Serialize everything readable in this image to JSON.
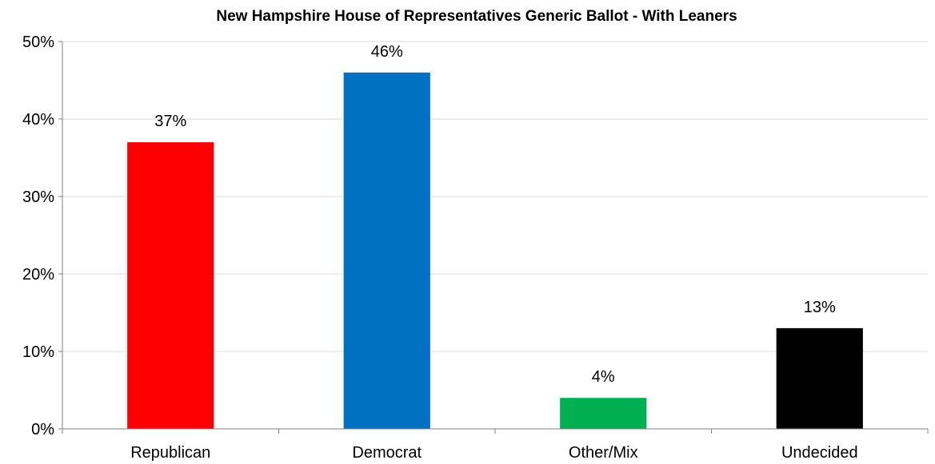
{
  "chart_data": {
    "type": "bar",
    "title": "New Hampshire House of Representatives Generic Ballot - With Leaners",
    "xlabel": "",
    "ylabel": "",
    "categories": [
      "Republican",
      "Democrat",
      "Other/Mix",
      "Undecided"
    ],
    "values": [
      37,
      46,
      4,
      13
    ],
    "value_labels": [
      "37%",
      "46%",
      "4%",
      "13%"
    ],
    "colors": [
      "#ff0000",
      "#0070c0",
      "#00b050",
      "#000000"
    ],
    "ylim": [
      0,
      50
    ],
    "yticks": [
      0,
      10,
      20,
      30,
      40,
      50
    ],
    "ytick_labels": [
      "0%",
      "10%",
      "20%",
      "30%",
      "40%",
      "50%"
    ],
    "grid": true,
    "legend": "none"
  }
}
